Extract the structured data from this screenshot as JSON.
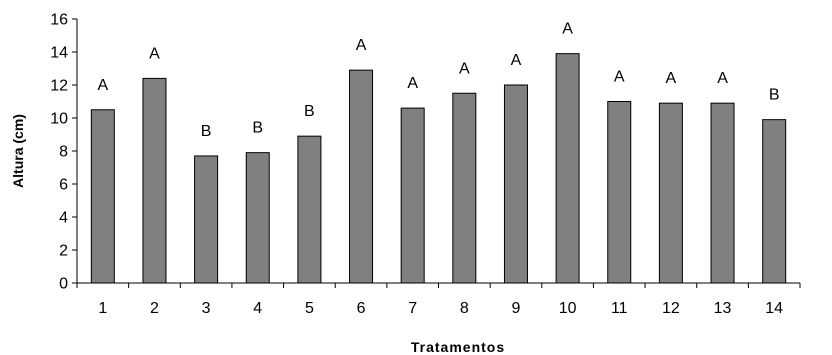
{
  "chart_data": {
    "type": "bar",
    "title": "",
    "xlabel": "Tratamentos",
    "ylabel": "Altura (cm)",
    "ylim": [
      0,
      16
    ],
    "yticks": [
      "0",
      "2",
      "4",
      "6",
      "8",
      "10",
      "12",
      "14",
      "16"
    ],
    "categories": [
      "1",
      "2",
      "3",
      "4",
      "5",
      "6",
      "7",
      "8",
      "9",
      "10",
      "11",
      "12",
      "13",
      "14"
    ],
    "values": [
      10.5,
      12.4,
      7.7,
      7.9,
      8.9,
      12.9,
      10.6,
      11.5,
      12.0,
      13.9,
      11.0,
      10.9,
      10.9,
      9.9
    ],
    "annotations": [
      "A",
      "A",
      "B",
      "B",
      "B",
      "A",
      "A",
      "A",
      "A",
      "A",
      "A",
      "A",
      "A",
      "B"
    ],
    "grid": false,
    "legend": "none",
    "bar_color": "#808080",
    "bar_edge_color": "#000000"
  }
}
